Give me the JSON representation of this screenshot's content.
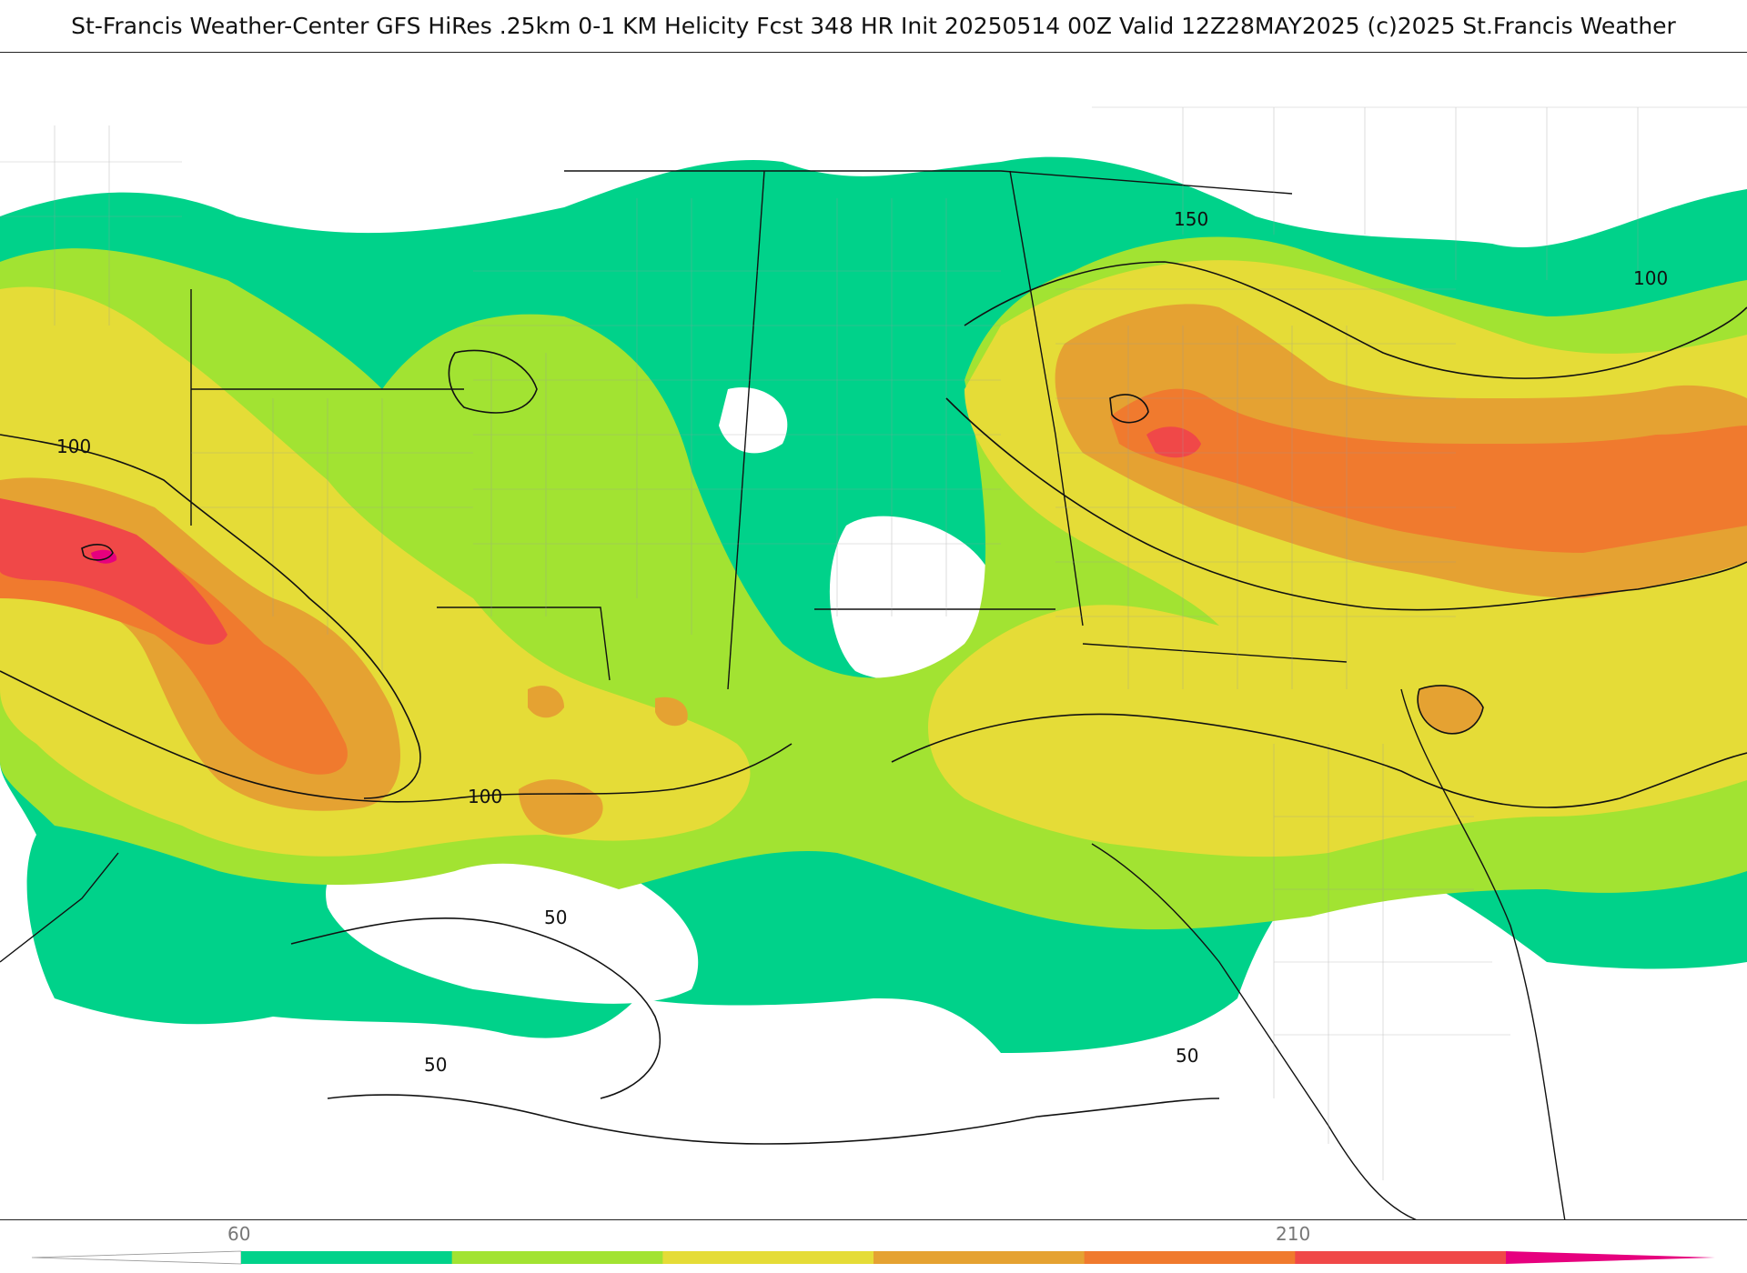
{
  "title": "St-Francis Weather-Center GFS HiRes .25km 0-1 KM Helicity Fcst 348 HR Init 20250514 00Z  Valid 12Z28MAY2025    (c)2025 St.Francis Weather",
  "map": {
    "contour_labels": [
      "150",
      "100",
      "100",
      "100",
      "50",
      "50",
      "50"
    ]
  },
  "colorbar": {
    "tick_labels": [
      "60",
      "210"
    ],
    "colors": [
      "#00d28a",
      "#a2e332",
      "#e5dc37",
      "#e5a232",
      "#f07a2e",
      "#f04848",
      "#e6007e"
    ]
  }
}
